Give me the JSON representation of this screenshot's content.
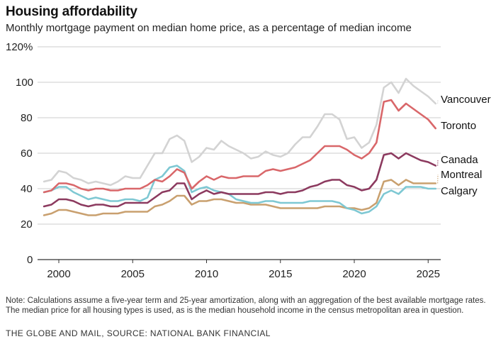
{
  "header": {
    "title": "Housing affordability",
    "subtitle": "Monthly mortgage payment on median home price, as a percentage of median income"
  },
  "footer": {
    "note": "Note: Calculations assume a five-year term and 25-year amortization, along with an aggregation of the best available mortgage rates. The median price for all housing types is used, as is the median household income in the census metropolitan area in question.",
    "credit": "THE GLOBE AND MAIL, SOURCE: NATIONAL BANK FINANCIAL"
  },
  "chart_data": {
    "type": "line",
    "title": "Housing affordability",
    "subtitle": "Monthly mortgage payment on median home price, as a percentage of median income",
    "xlabel": "",
    "ylabel": "",
    "xlim": [
      1998.9,
      2026.0
    ],
    "ylim": [
      0,
      120
    ],
    "grid": true,
    "legend": "direct labels at right end of lines",
    "y_ticks": [
      {
        "value": 0,
        "label": "0"
      },
      {
        "value": 20,
        "label": "20"
      },
      {
        "value": 40,
        "label": "40"
      },
      {
        "value": 60,
        "label": "60"
      },
      {
        "value": 80,
        "label": "80"
      },
      {
        "value": 100,
        "label": "100"
      },
      {
        "value": 120,
        "label": "120%"
      }
    ],
    "x_ticks": [
      {
        "value": 2000,
        "label": "2000"
      },
      {
        "value": 2005,
        "label": "2005"
      },
      {
        "value": 2010,
        "label": "2010"
      },
      {
        "value": 2015,
        "label": "2015"
      },
      {
        "value": 2020,
        "label": "2020"
      },
      {
        "value": 2025,
        "label": "2025"
      }
    ],
    "x": [
      1999.0,
      1999.5,
      2000.0,
      2000.5,
      2001.0,
      2001.5,
      2002.0,
      2002.5,
      2003.0,
      2003.5,
      2004.0,
      2004.5,
      2005.0,
      2005.5,
      2006.0,
      2006.5,
      2007.0,
      2007.5,
      2008.0,
      2008.5,
      2009.0,
      2009.5,
      2010.0,
      2010.5,
      2011.0,
      2011.5,
      2012.0,
      2012.5,
      2013.0,
      2013.5,
      2014.0,
      2014.5,
      2015.0,
      2015.5,
      2016.0,
      2016.5,
      2017.0,
      2017.5,
      2018.0,
      2018.5,
      2019.0,
      2019.5,
      2020.0,
      2020.5,
      2021.0,
      2021.5,
      2022.0,
      2022.5,
      2023.0,
      2023.5,
      2024.0,
      2024.5,
      2025.0,
      2025.5
    ],
    "series": [
      {
        "name": "Vancouver",
        "color": "#d3d3d3",
        "values": [
          44,
          45,
          50,
          49,
          46,
          45,
          43,
          44,
          43,
          42,
          44,
          47,
          46,
          46,
          53,
          60,
          60,
          68,
          70,
          67,
          55,
          58,
          63,
          62,
          67,
          64,
          62,
          60,
          57,
          58,
          61,
          59,
          58,
          60,
          65,
          69,
          69,
          75,
          82,
          82,
          79,
          68,
          69,
          63,
          66,
          76,
          97,
          100,
          94,
          102,
          98,
          95,
          92,
          88
        ]
      },
      {
        "name": "Toronto",
        "color": "#d9676a",
        "values": [
          38,
          39,
          43,
          43,
          42,
          40,
          39,
          40,
          40,
          39,
          39,
          40,
          40,
          40,
          42,
          45,
          44,
          47,
          51,
          49,
          40,
          44,
          47,
          45,
          47,
          46,
          46,
          47,
          47,
          47,
          50,
          51,
          50,
          51,
          52,
          54,
          56,
          60,
          64,
          64,
          64,
          62,
          59,
          57,
          60,
          66,
          89,
          90,
          84,
          88,
          85,
          82,
          79,
          74
        ]
      },
      {
        "name": "Canada",
        "color": "#8c3a5f",
        "values": [
          30,
          31,
          34,
          34,
          33,
          31,
          30,
          31,
          31,
          30,
          30,
          32,
          32,
          32,
          32,
          35,
          38,
          39,
          43,
          43,
          34,
          37,
          39,
          37,
          38,
          37,
          37,
          37,
          37,
          37,
          38,
          38,
          37,
          38,
          38,
          39,
          41,
          42,
          44,
          45,
          45,
          42,
          41,
          39,
          40,
          45,
          59,
          60,
          57,
          60,
          58,
          56,
          55,
          53
        ]
      },
      {
        "name": "Montreal",
        "color": "#c9a06f",
        "values": [
          25,
          26,
          28,
          28,
          27,
          26,
          25,
          25,
          26,
          26,
          26,
          27,
          27,
          27,
          27,
          30,
          31,
          33,
          36,
          36,
          31,
          33,
          33,
          34,
          34,
          33,
          32,
          32,
          31,
          31,
          31,
          30,
          29,
          29,
          29,
          29,
          29,
          29,
          30,
          30,
          30,
          29,
          29,
          28,
          29,
          32,
          44,
          45,
          42,
          45,
          43,
          43,
          43,
          43
        ]
      },
      {
        "name": "Calgary",
        "color": "#7ec8d3",
        "values": [
          38,
          39,
          41,
          41,
          38,
          36,
          34,
          35,
          34,
          33,
          33,
          34,
          34,
          33,
          35,
          45,
          47,
          52,
          53,
          50,
          38,
          40,
          41,
          39,
          38,
          37,
          34,
          33,
          32,
          32,
          33,
          33,
          32,
          32,
          32,
          32,
          33,
          33,
          33,
          33,
          32,
          29,
          28,
          26,
          27,
          30,
          37,
          39,
          37,
          41,
          41,
          41,
          40,
          40
        ]
      }
    ]
  }
}
